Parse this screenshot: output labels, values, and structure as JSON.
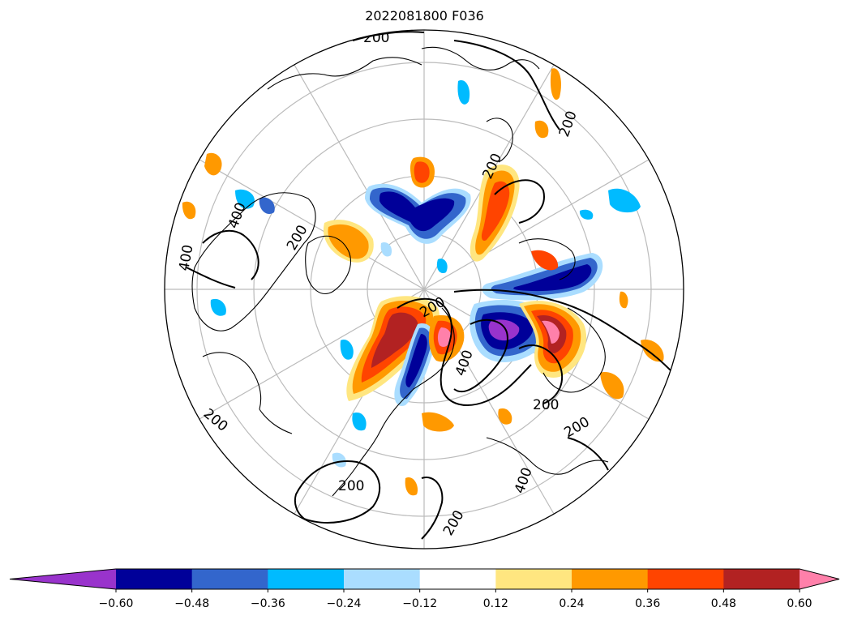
{
  "title": "2022081800 F036",
  "colorbar": {
    "colors": [
      "#9933cc",
      "#000099",
      "#3366cc",
      "#00bbff",
      "#aaddff",
      "#ffffff",
      "#ffe680",
      "#ff9900",
      "#ff4400",
      "#b22222",
      "#ff80aa"
    ],
    "tick_labels": [
      "−0.60",
      "−0.48",
      "−0.36",
      "−0.24",
      "−0.12",
      "0.12",
      "0.24",
      "0.36",
      "0.48",
      "0.60"
    ]
  },
  "contour_labels": [
    "200",
    "200",
    "200",
    "200",
    "200",
    "200",
    "200",
    "200",
    "200",
    "200",
    "400",
    "400",
    "400",
    "400"
  ],
  "map": {
    "projection": "north polar stereographic",
    "contour_color": "#000000",
    "grid_color": "#bbbbbb"
  }
}
